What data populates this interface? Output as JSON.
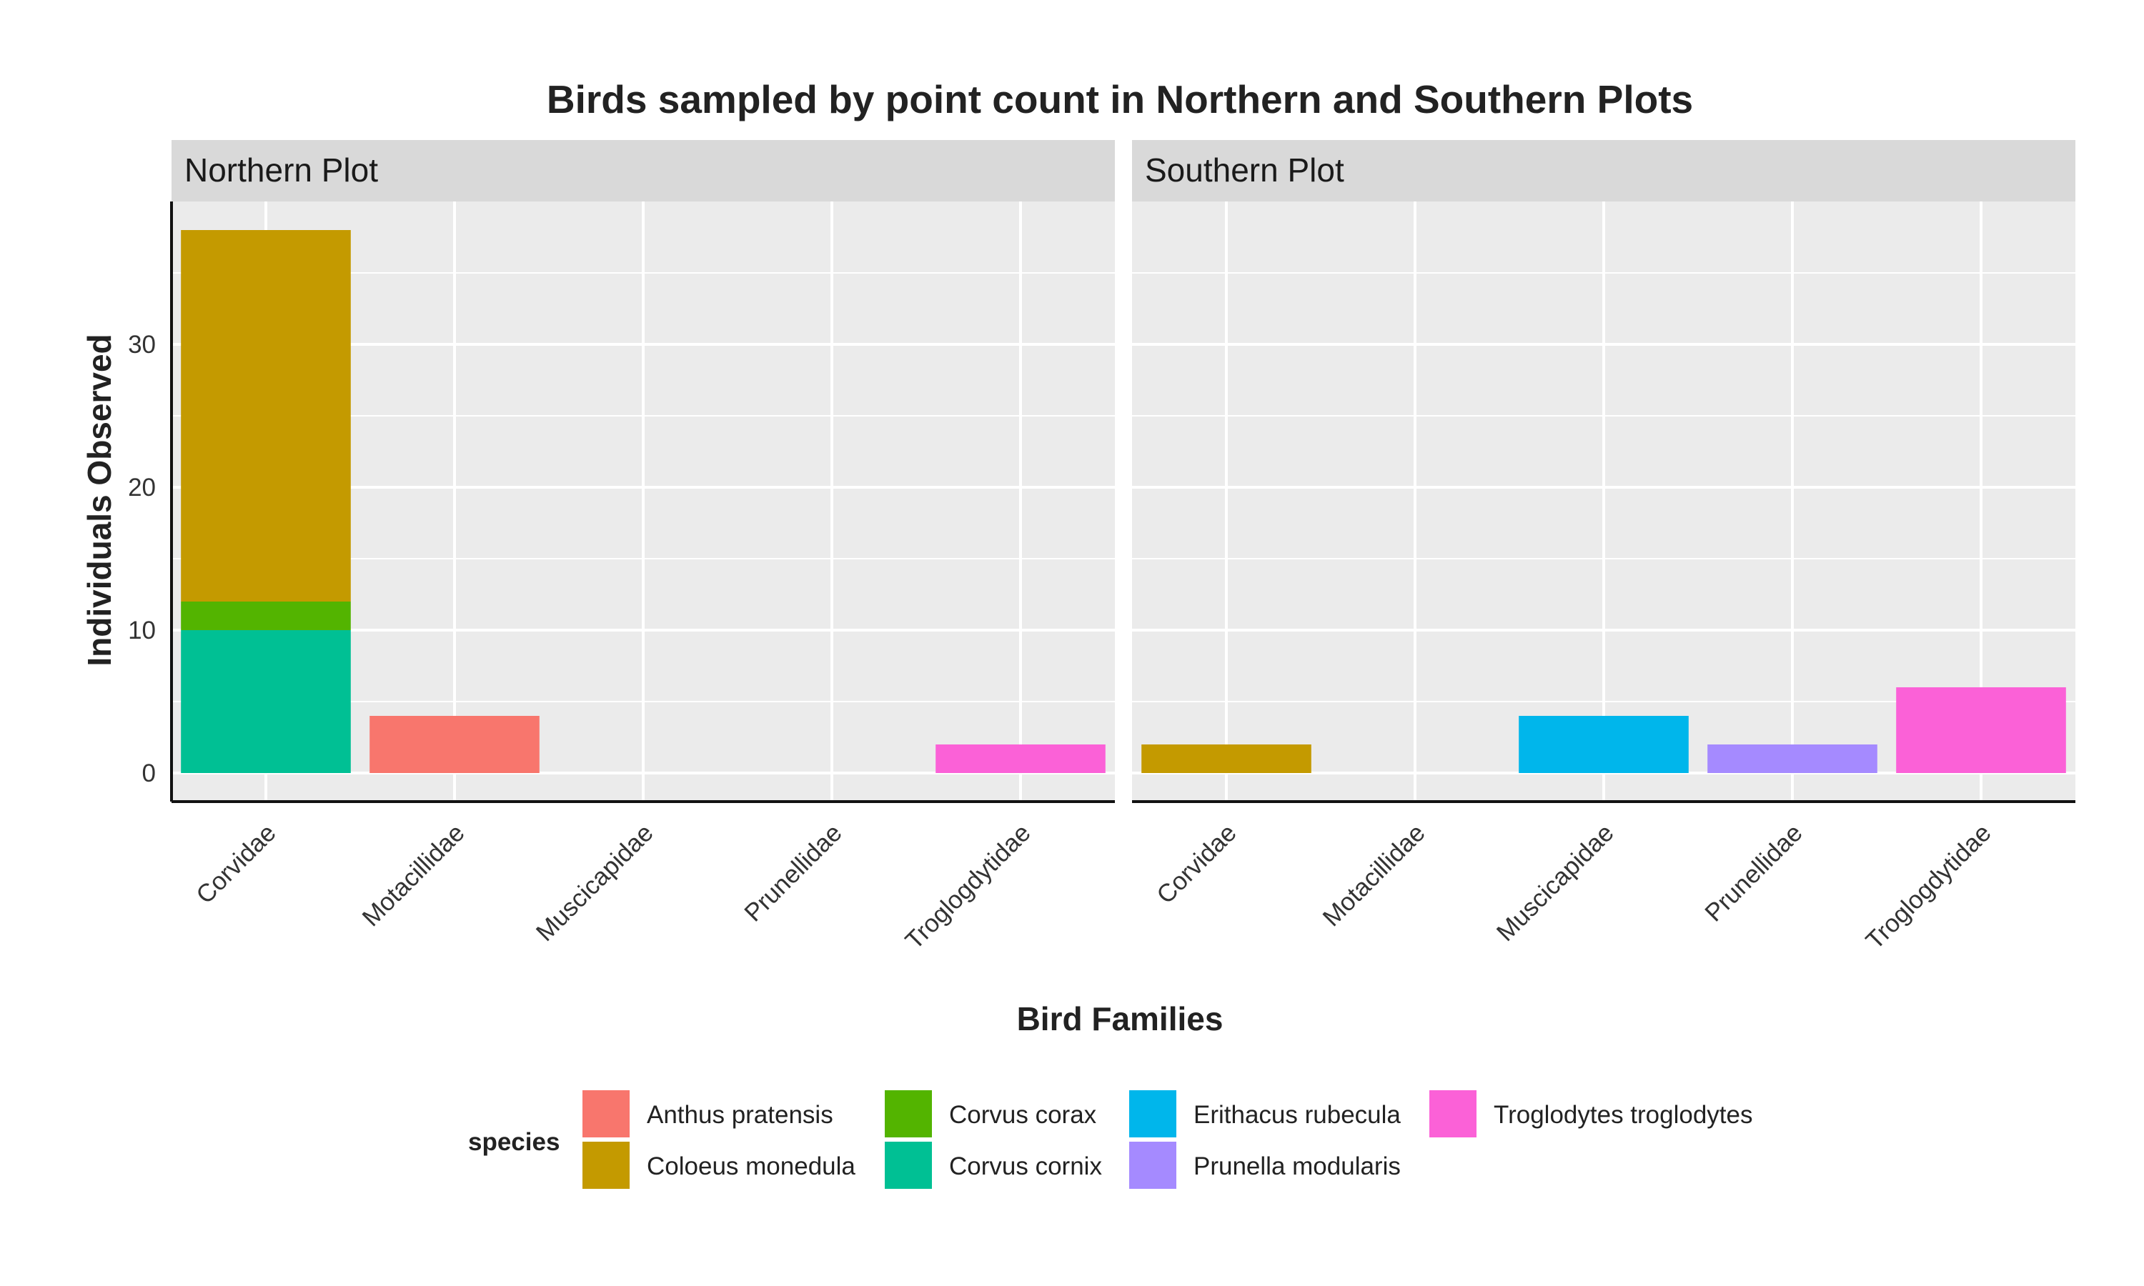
{
  "chart_data": {
    "type": "bar",
    "title": "Birds sampled by point count in Northern and Southern Plots",
    "xlabel": "Bird Families",
    "ylabel": "Individuals Observed",
    "categories": [
      "Corvidae",
      "Motacillidae",
      "Muscicapidae",
      "Prunellidae",
      "Troglogdytidae"
    ],
    "yticks": [
      0,
      10,
      20,
      30
    ],
    "ylim": [
      -2,
      40
    ],
    "grid": true,
    "stacked": true,
    "legend_position": "bottom",
    "legend_title": "species",
    "species": [
      {
        "name": "Anthus pratensis",
        "color": "#F8766D"
      },
      {
        "name": "Coloeus monedula",
        "color": "#C49A00"
      },
      {
        "name": "Corvus corax",
        "color": "#53B400"
      },
      {
        "name": "Corvus cornix",
        "color": "#00C094"
      },
      {
        "name": "Erithacus rubecula",
        "color": "#00B6EB"
      },
      {
        "name": "Prunella modularis",
        "color": "#A58AFF"
      },
      {
        "name": "Troglodytes troglodytes",
        "color": "#FB61D7"
      }
    ],
    "panels": [
      {
        "label": "Northern Plot",
        "bars": [
          {
            "category": "Corvidae",
            "segments": [
              {
                "species": "Corvus cornix",
                "value": 10
              },
              {
                "species": "Corvus corax",
                "value": 2
              },
              {
                "species": "Coloeus monedula",
                "value": 26
              }
            ]
          },
          {
            "category": "Motacillidae",
            "segments": [
              {
                "species": "Anthus pratensis",
                "value": 4
              }
            ]
          },
          {
            "category": "Troglogdytidae",
            "segments": [
              {
                "species": "Troglodytes troglodytes",
                "value": 2
              }
            ]
          }
        ]
      },
      {
        "label": "Southern Plot",
        "bars": [
          {
            "category": "Corvidae",
            "segments": [
              {
                "species": "Coloeus monedula",
                "value": 2
              }
            ]
          },
          {
            "category": "Muscicapidae",
            "segments": [
              {
                "species": "Erithacus rubecula",
                "value": 4
              }
            ]
          },
          {
            "category": "Prunellidae",
            "segments": [
              {
                "species": "Prunella modularis",
                "value": 2
              }
            ]
          },
          {
            "category": "Troglogdytidae",
            "segments": [
              {
                "species": "Troglodytes troglodytes",
                "value": 6
              }
            ]
          }
        ]
      }
    ]
  }
}
